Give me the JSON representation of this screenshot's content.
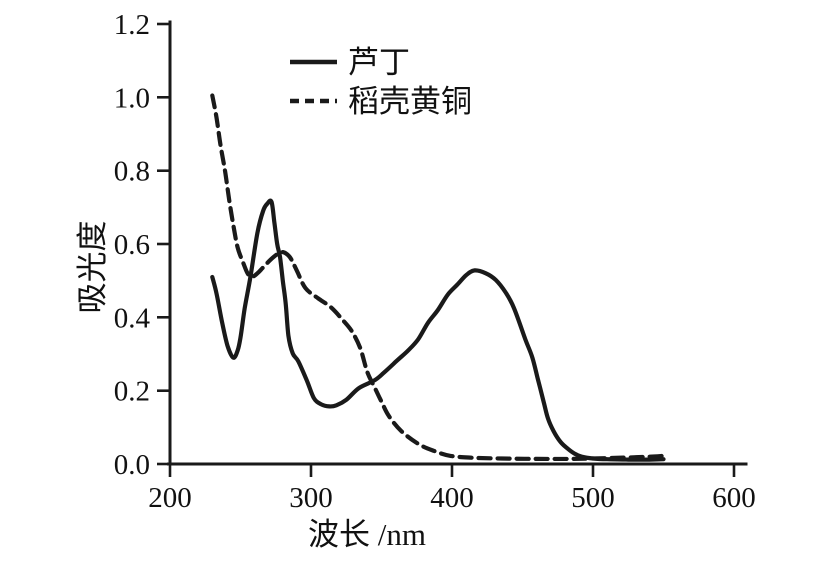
{
  "figure": {
    "background": "#ffffff",
    "ink_color": "#1a1a1a"
  },
  "chart_data": {
    "type": "line",
    "title": "",
    "xlabel": "波长 /nm",
    "ylabel": "吸光度",
    "xlim": [
      200,
      600
    ],
    "ylim": [
      0,
      1.2
    ],
    "x_tick_labels": [
      "200",
      "300",
      "400",
      "500",
      "600"
    ],
    "y_tick_labels": [
      "0.0",
      "0.2",
      "0.4",
      "0.6",
      "0.8",
      "1.0",
      "1.2"
    ],
    "grid": false,
    "legend_position": "upper-left-inside",
    "series": [
      {
        "name": "芦丁",
        "line_style": "solid",
        "color": "#1a1a1a",
        "points": [
          [
            230,
            0.51
          ],
          [
            233,
            0.465
          ],
          [
            237,
            0.385
          ],
          [
            241,
            0.32
          ],
          [
            245,
            0.29
          ],
          [
            248,
            0.31
          ],
          [
            250,
            0.345
          ],
          [
            253,
            0.425
          ],
          [
            257,
            0.51
          ],
          [
            262,
            0.63
          ],
          [
            266,
            0.69
          ],
          [
            269,
            0.71
          ],
          [
            272,
            0.715
          ],
          [
            274,
            0.66
          ],
          [
            276,
            0.6
          ],
          [
            278,
            0.565
          ],
          [
            280,
            0.5
          ],
          [
            282,
            0.44
          ],
          [
            284,
            0.35
          ],
          [
            287,
            0.302
          ],
          [
            291,
            0.28
          ],
          [
            297,
            0.228
          ],
          [
            302,
            0.18
          ],
          [
            307,
            0.163
          ],
          [
            313,
            0.157
          ],
          [
            318,
            0.16
          ],
          [
            325,
            0.175
          ],
          [
            334,
            0.207
          ],
          [
            345,
            0.228
          ],
          [
            352,
            0.25
          ],
          [
            361,
            0.282
          ],
          [
            369,
            0.31
          ],
          [
            376,
            0.34
          ],
          [
            383,
            0.385
          ],
          [
            390,
            0.42
          ],
          [
            397,
            0.462
          ],
          [
            404,
            0.49
          ],
          [
            410,
            0.515
          ],
          [
            416,
            0.528
          ],
          [
            424,
            0.52
          ],
          [
            431,
            0.502
          ],
          [
            438,
            0.468
          ],
          [
            444,
            0.425
          ],
          [
            452,
            0.34
          ],
          [
            457,
            0.29
          ],
          [
            461,
            0.23
          ],
          [
            465,
            0.17
          ],
          [
            468,
            0.125
          ],
          [
            472,
            0.09
          ],
          [
            477,
            0.06
          ],
          [
            482,
            0.042
          ],
          [
            487,
            0.028
          ],
          [
            492,
            0.02
          ],
          [
            500,
            0.015
          ],
          [
            510,
            0.013
          ],
          [
            525,
            0.012
          ],
          [
            540,
            0.012
          ],
          [
            550,
            0.013
          ]
        ]
      },
      {
        "name": "稻壳黄铜",
        "line_style": "dashed",
        "color": "#1a1a1a",
        "points": [
          [
            230,
            1.005
          ],
          [
            233,
            0.945
          ],
          [
            236,
            0.865
          ],
          [
            239,
            0.8
          ],
          [
            242,
            0.72
          ],
          [
            245,
            0.65
          ],
          [
            248,
            0.59
          ],
          [
            252,
            0.548
          ],
          [
            255,
            0.52
          ],
          [
            258,
            0.51
          ],
          [
            262,
            0.52
          ],
          [
            266,
            0.536
          ],
          [
            271,
            0.556
          ],
          [
            276,
            0.572
          ],
          [
            280,
            0.578
          ],
          [
            285,
            0.564
          ],
          [
            290,
            0.527
          ],
          [
            296,
            0.48
          ],
          [
            305,
            0.452
          ],
          [
            314,
            0.428
          ],
          [
            322,
            0.395
          ],
          [
            329,
            0.362
          ],
          [
            335,
            0.315
          ],
          [
            340,
            0.25
          ],
          [
            345,
            0.21
          ],
          [
            350,
            0.17
          ],
          [
            355,
            0.132
          ],
          [
            364,
            0.09
          ],
          [
            376,
            0.055
          ],
          [
            387,
            0.036
          ],
          [
            399,
            0.022
          ],
          [
            415,
            0.017
          ],
          [
            435,
            0.015
          ],
          [
            460,
            0.014
          ],
          [
            485,
            0.014
          ],
          [
            510,
            0.016
          ],
          [
            535,
            0.019
          ],
          [
            550,
            0.022
          ]
        ]
      }
    ]
  },
  "legend": {
    "items": [
      {
        "label": "芦丁",
        "line_style": "solid"
      },
      {
        "label": "稻壳黄铜",
        "line_style": "dashed"
      }
    ]
  }
}
